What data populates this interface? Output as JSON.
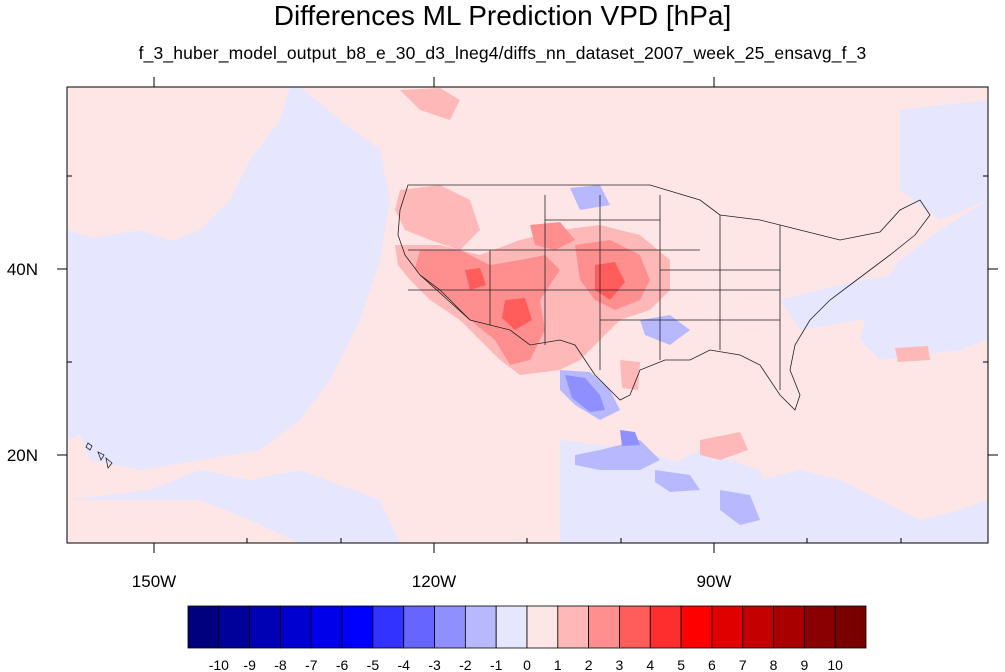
{
  "title": "Differences ML Prediction VPD [hPa]",
  "subtitle": "f_3_huber_model_output_b8_e_30_d3_lneg4/diffs_nn_dataset_2007_week_25_ensavg_f_3",
  "map": {
    "projection": "lat-lon",
    "lon_range": [
      -160,
      -62
    ],
    "lat_range": [
      10,
      59
    ],
    "x_tick_labels": [
      "150W",
      "120W",
      "90W"
    ],
    "y_tick_labels": [
      "40N",
      "20N"
    ],
    "background_color": "#e6e6ff"
  },
  "colorbar": {
    "labels": [
      "-10",
      "-9",
      "-8",
      "-7",
      "-6",
      "-5",
      "-4",
      "-3",
      "-2",
      "-1",
      "0",
      "1",
      "2",
      "3",
      "4",
      "5",
      "6",
      "7",
      "8",
      "9",
      "10"
    ],
    "colors": [
      "#00007f",
      "#00009a",
      "#0000b5",
      "#0000d0",
      "#0000eb",
      "#0000ff",
      "#3333ff",
      "#6666ff",
      "#8f8fff",
      "#b8b8ff",
      "#e6e6ff",
      "#ffe6e6",
      "#ffb8b8",
      "#ff8f8f",
      "#ff5c5c",
      "#ff2e2e",
      "#ff0000",
      "#e00000",
      "#c40000",
      "#a80000",
      "#8a0000",
      "#7a0000"
    ]
  }
}
